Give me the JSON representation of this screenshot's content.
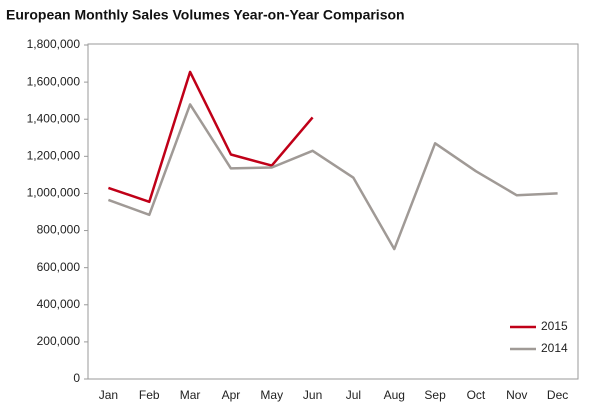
{
  "chart_data": {
    "type": "line",
    "title": "European Monthly Sales Volumes Year-on-Year Comparison",
    "categories": [
      "Jan",
      "Feb",
      "Mar",
      "Apr",
      "May",
      "Jun",
      "Jul",
      "Aug",
      "Sep",
      "Oct",
      "Nov",
      "Dec"
    ],
    "series": [
      {
        "name": "2015",
        "color": "#c00018",
        "values": [
          1030000,
          955000,
          1655000,
          1210000,
          1150000,
          1410000,
          null,
          null,
          null,
          null,
          null,
          null
        ]
      },
      {
        "name": "2014",
        "color": "#a09a96",
        "values": [
          965000,
          885000,
          1480000,
          1135000,
          1140000,
          1230000,
          1085000,
          700000,
          1270000,
          1120000,
          990000,
          1000000
        ]
      }
    ],
    "ylim": [
      0,
      1800000
    ],
    "yticks": [
      0,
      {
        "value": 200000,
        "label": "200,000"
      },
      {
        "value": 400000,
        "label": "400,000"
      },
      {
        "value": 600000,
        "label": "600,000"
      },
      {
        "value": 800000,
        "label": "800,000"
      },
      {
        "value": 1000000,
        "label": "1,000,000"
      },
      {
        "value": 1200000,
        "label": "1,200,000"
      },
      {
        "value": 1400000,
        "label": "1,400,000"
      },
      {
        "value": 1600000,
        "label": "1,600,000"
      },
      {
        "value": 1800000,
        "label": "1,800,000"
      }
    ],
    "grid": false,
    "legend": "lower right"
  }
}
